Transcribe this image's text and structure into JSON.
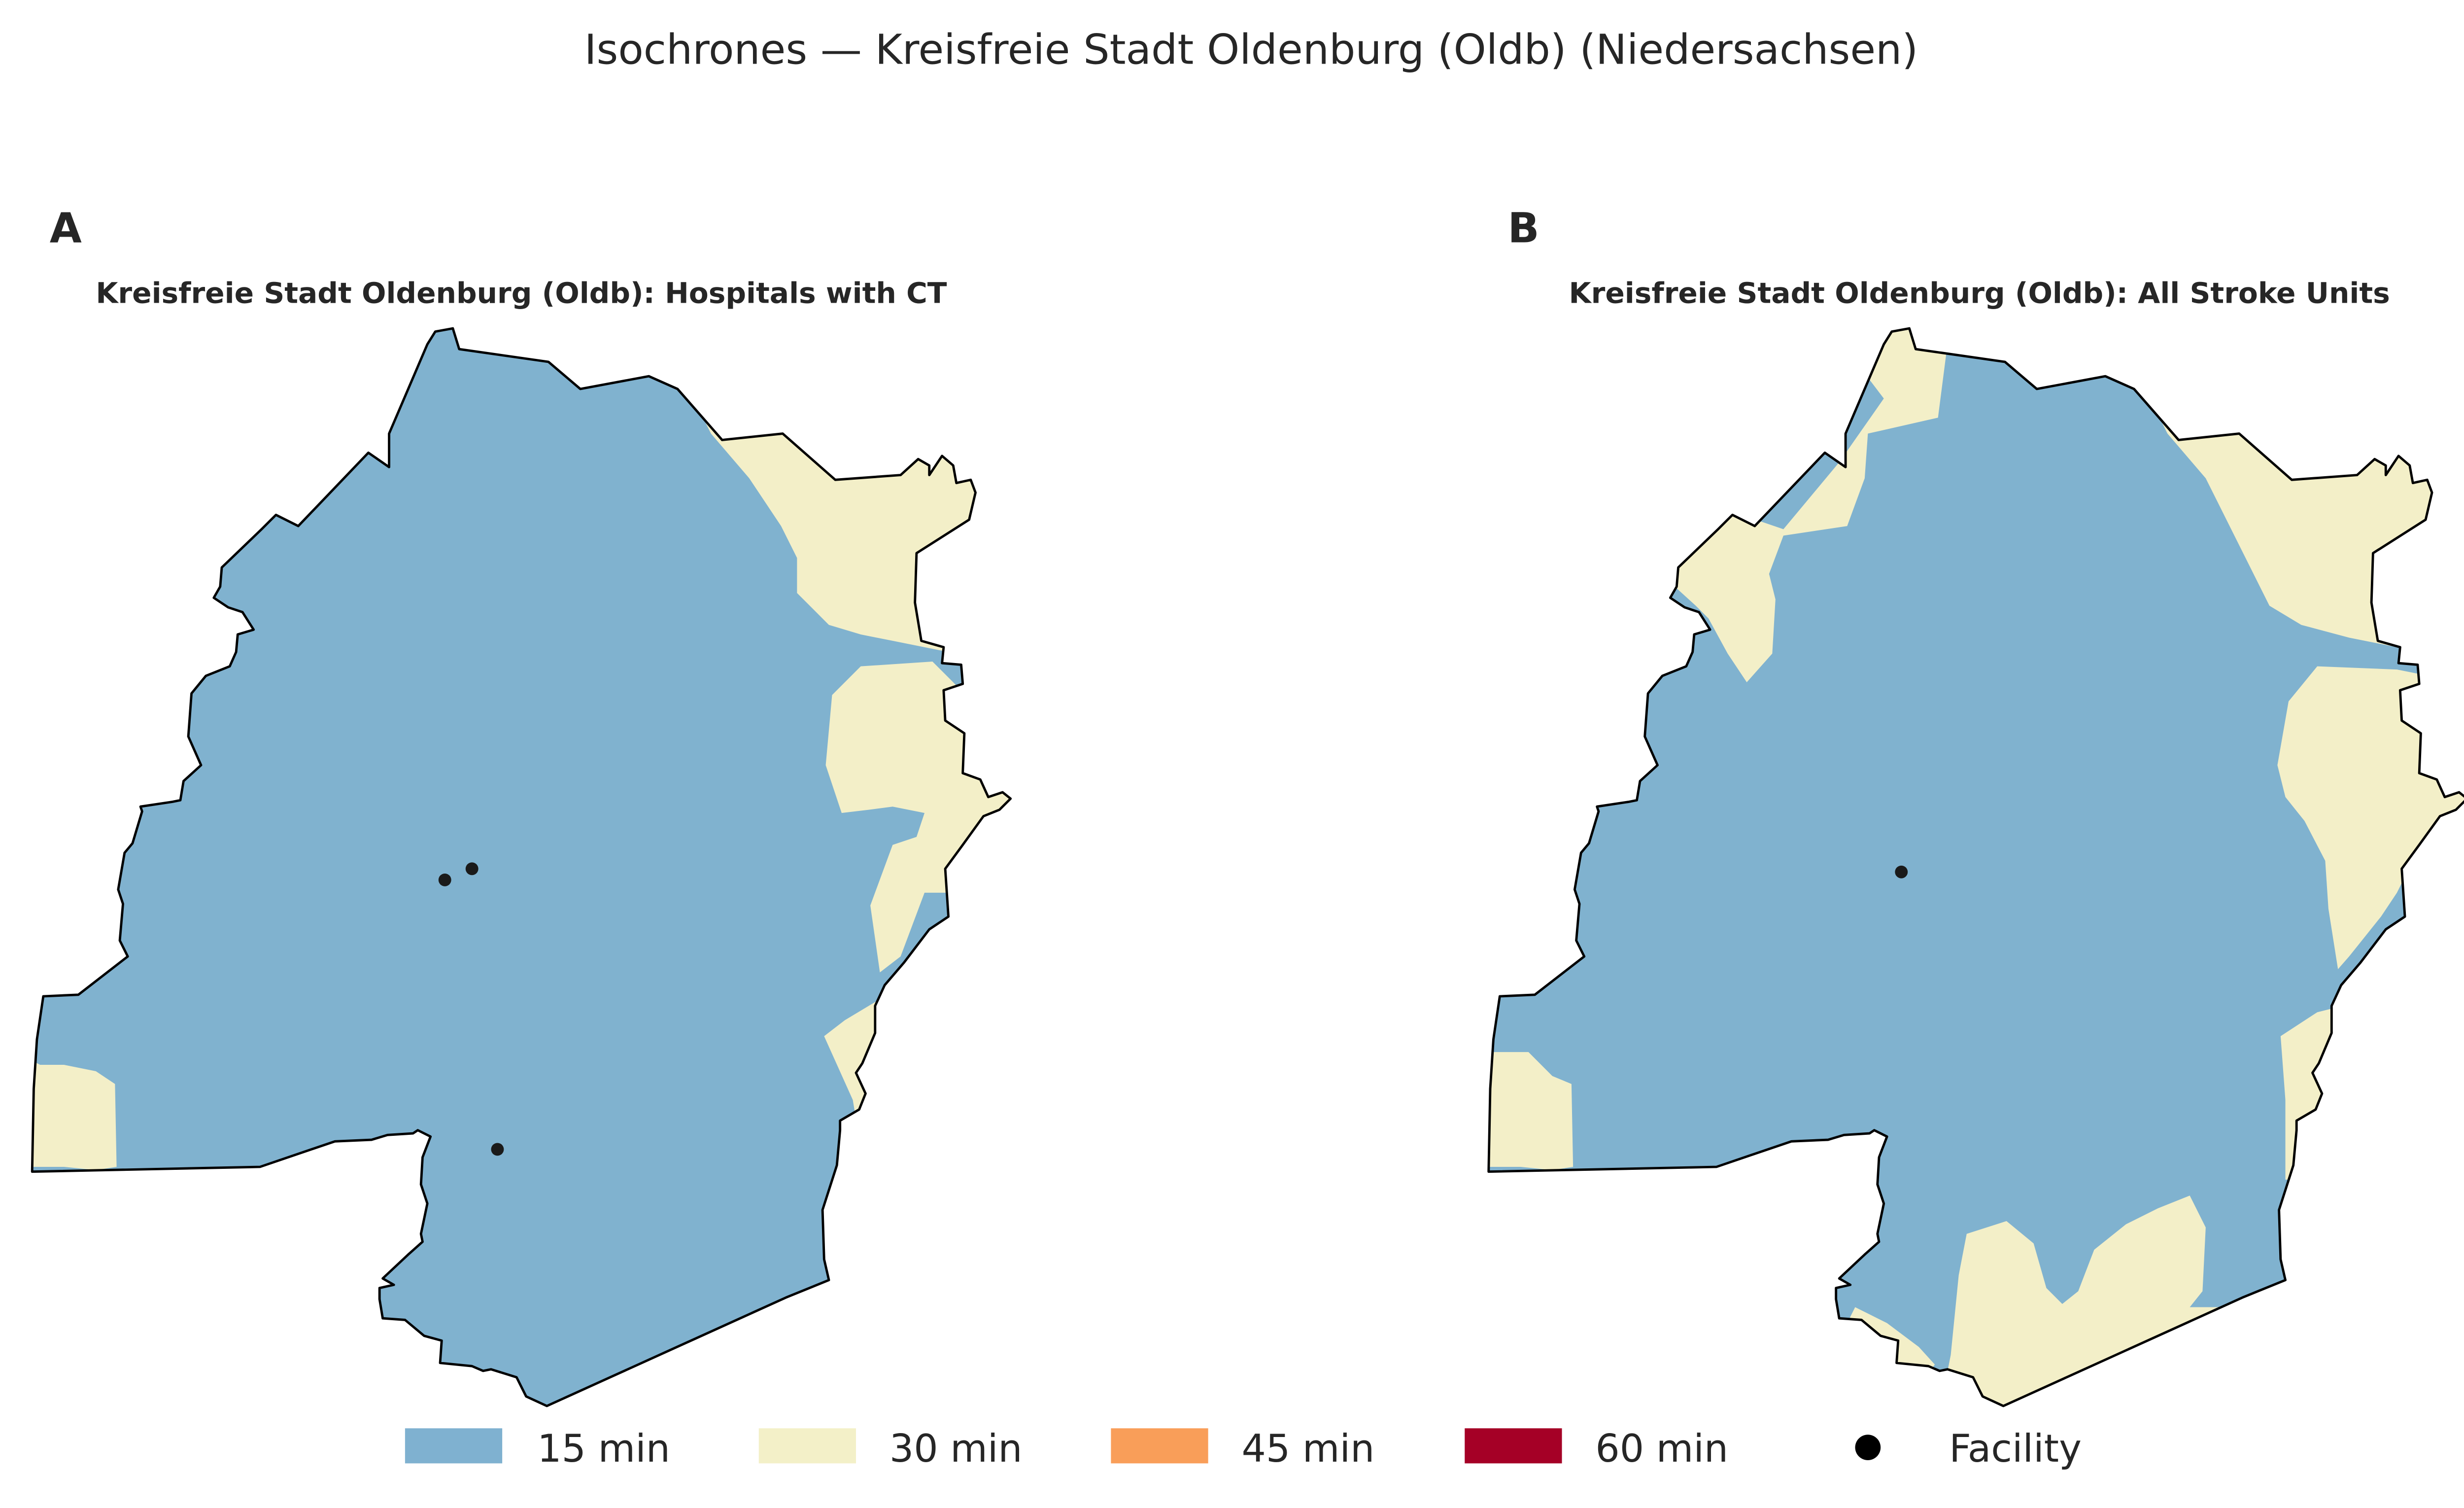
{
  "figure": {
    "title": "Isochrones — Kreisfreie Stadt Oldenburg (Oldb) (Niedersachsen)"
  },
  "panels": [
    {
      "letter": "A",
      "title": "Kreisfreie Stadt Oldenburg (Oldb): Hospitals with CT",
      "facility_count": 3
    },
    {
      "letter": "B",
      "title": "Kreisfreie Stadt Oldenburg (Oldb): All Stroke Units",
      "facility_count": 1
    }
  ],
  "legend": {
    "items": [
      {
        "label": "15 min",
        "color": "#7fb1d0"
      },
      {
        "label": "30 min",
        "color": "#f3f0c8"
      },
      {
        "label": "45 min",
        "color": "#f99e59"
      },
      {
        "label": "60 min",
        "color": "#a50026"
      }
    ],
    "facility_label": "Facility"
  },
  "colors": {
    "zone_15": "#80b2cf",
    "zone_30": "#f3efc8",
    "outline": "#000000",
    "facility": "#1a1a1a",
    "text": "#262626"
  }
}
